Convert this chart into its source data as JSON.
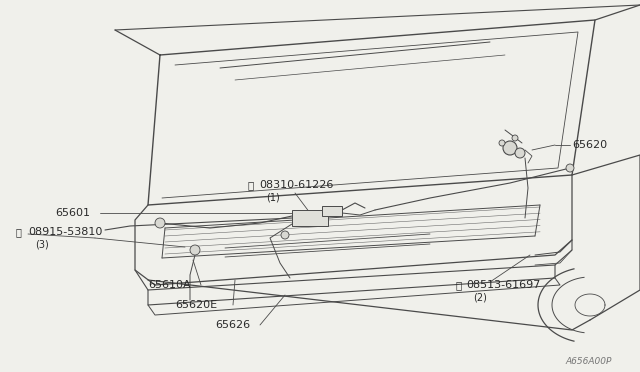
{
  "bg_color": "#f0f0eb",
  "line_color": "#4a4a4a",
  "text_color": "#2a2a2a",
  "fig_width": 6.4,
  "fig_height": 3.72,
  "dpi": 100,
  "diagram_number": "A656A00P"
}
